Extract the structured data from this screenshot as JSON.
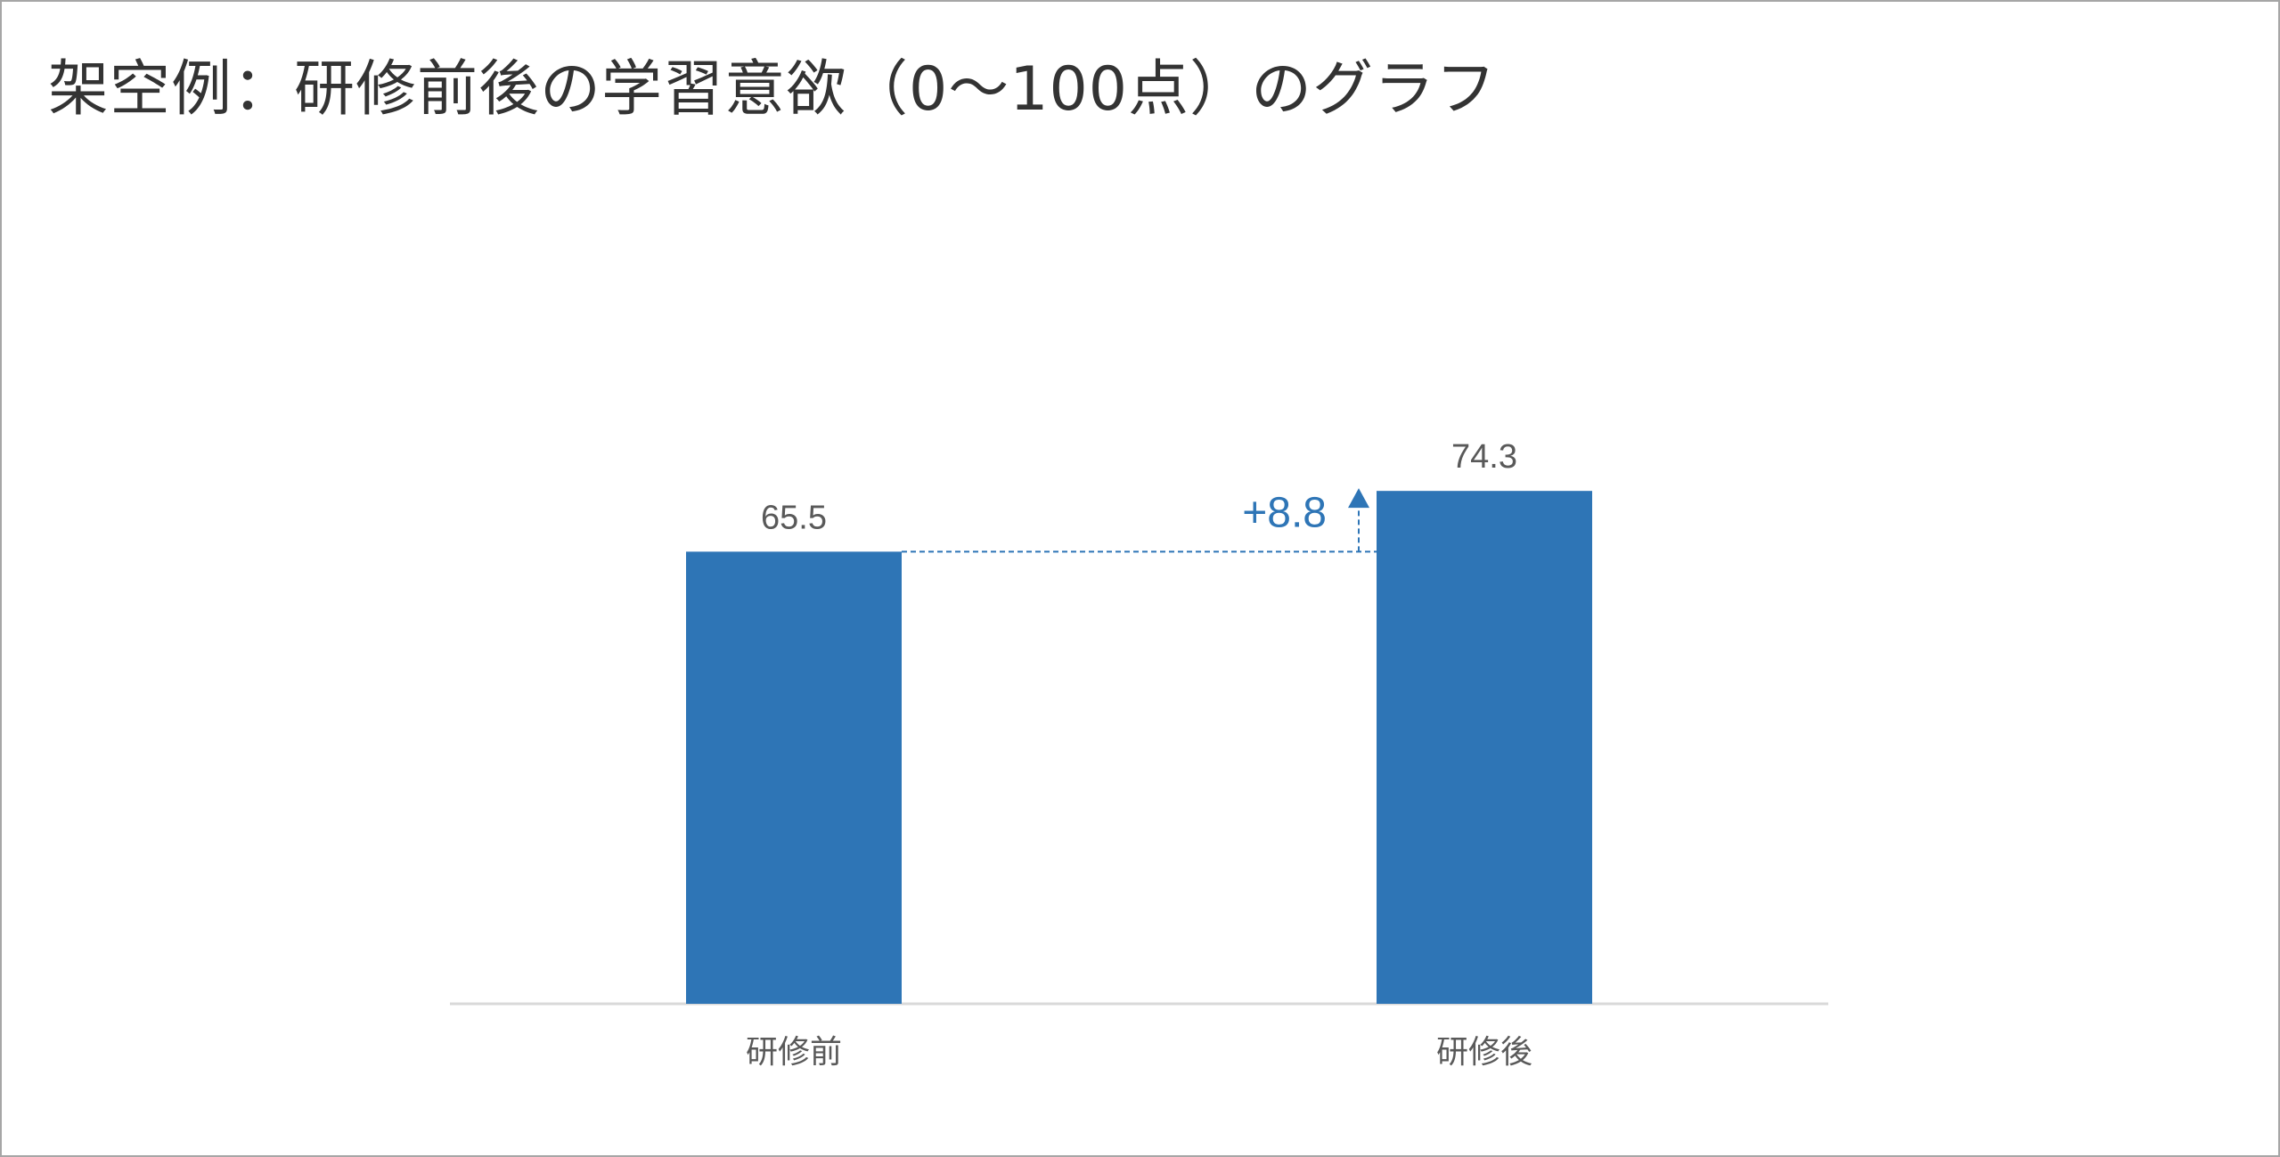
{
  "chart_data": {
    "type": "bar",
    "title": "架空例：研修前後の学習意欲（0～100点）のグラフ",
    "categories": [
      "研修前",
      "研修後"
    ],
    "values": [
      65.5,
      74.3
    ],
    "value_labels": [
      "65.5",
      "74.3"
    ],
    "difference_label": "+8.8",
    "ylim": [
      0,
      100
    ],
    "grid": false,
    "xlabel": "",
    "ylabel": "",
    "colors": {
      "bar": "#2e75b6",
      "annotation": "#2e75b6",
      "axis": "#d9d9d9",
      "label": "#595959"
    }
  }
}
